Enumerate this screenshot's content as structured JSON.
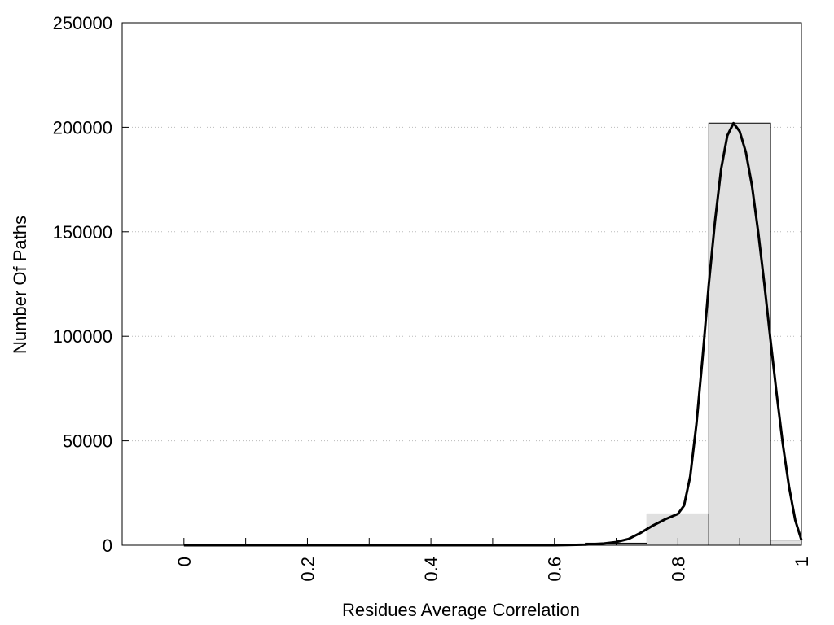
{
  "chart_data": {
    "type": "bar",
    "title": "",
    "xlabel": "Residues Average Correlation",
    "ylabel": "Number Of Paths",
    "xlim": [
      -0.1,
      1.0
    ],
    "ylim": [
      0,
      250000
    ],
    "x_ticks": [
      0,
      0.1,
      0.2,
      0.3,
      0.4,
      0.5,
      0.6,
      0.7,
      0.8,
      0.9,
      1.0
    ],
    "x_tick_labels": [
      {
        "value": 0,
        "text": "0"
      },
      {
        "value": 0.2,
        "text": "0.2"
      },
      {
        "value": 0.4,
        "text": "0.4"
      },
      {
        "value": 0.6,
        "text": "0.6"
      },
      {
        "value": 0.8,
        "text": "0.8"
      },
      {
        "value": 1.0,
        "text": "1"
      }
    ],
    "y_tick_labels": [
      {
        "value": 0,
        "text": "0"
      },
      {
        "value": 50000,
        "text": "50000"
      },
      {
        "value": 100000,
        "text": "100000"
      },
      {
        "value": 150000,
        "text": "150000"
      },
      {
        "value": 200000,
        "text": "200000"
      },
      {
        "value": 250000,
        "text": "250000"
      }
    ],
    "grid": "horizontal dotted",
    "bin_width": 0.1,
    "bars": [
      {
        "center": 0.0,
        "value": 0
      },
      {
        "center": 0.1,
        "value": 0
      },
      {
        "center": 0.2,
        "value": 0
      },
      {
        "center": 0.3,
        "value": 0
      },
      {
        "center": 0.4,
        "value": 0
      },
      {
        "center": 0.5,
        "value": 0
      },
      {
        "center": 0.6,
        "value": 100
      },
      {
        "center": 0.7,
        "value": 1000
      },
      {
        "center": 0.8,
        "value": 15000
      },
      {
        "center": 0.9,
        "value": 202000
      },
      {
        "center": 1.0,
        "value": 2500
      }
    ],
    "bar_color": "#e0e0e0",
    "fit_curve": {
      "x": [
        0.0,
        0.1,
        0.2,
        0.3,
        0.4,
        0.5,
        0.6,
        0.62,
        0.65,
        0.68,
        0.7,
        0.72,
        0.74,
        0.76,
        0.78,
        0.8,
        0.81,
        0.82,
        0.83,
        0.84,
        0.85,
        0.86,
        0.87,
        0.88,
        0.89,
        0.9,
        0.91,
        0.92,
        0.93,
        0.94,
        0.95,
        0.96,
        0.97,
        0.98,
        0.99,
        1.0
      ],
      "y": [
        0,
        0,
        0,
        0,
        0,
        0,
        0,
        100,
        300,
        800,
        1500,
        3000,
        6000,
        9500,
        12500,
        15000,
        19000,
        33000,
        58000,
        90000,
        125000,
        155000,
        180000,
        196000,
        202000,
        198000,
        188000,
        172000,
        150000,
        125000,
        98000,
        72000,
        48000,
        28000,
        12000,
        2500
      ],
      "color": "#000000"
    }
  }
}
